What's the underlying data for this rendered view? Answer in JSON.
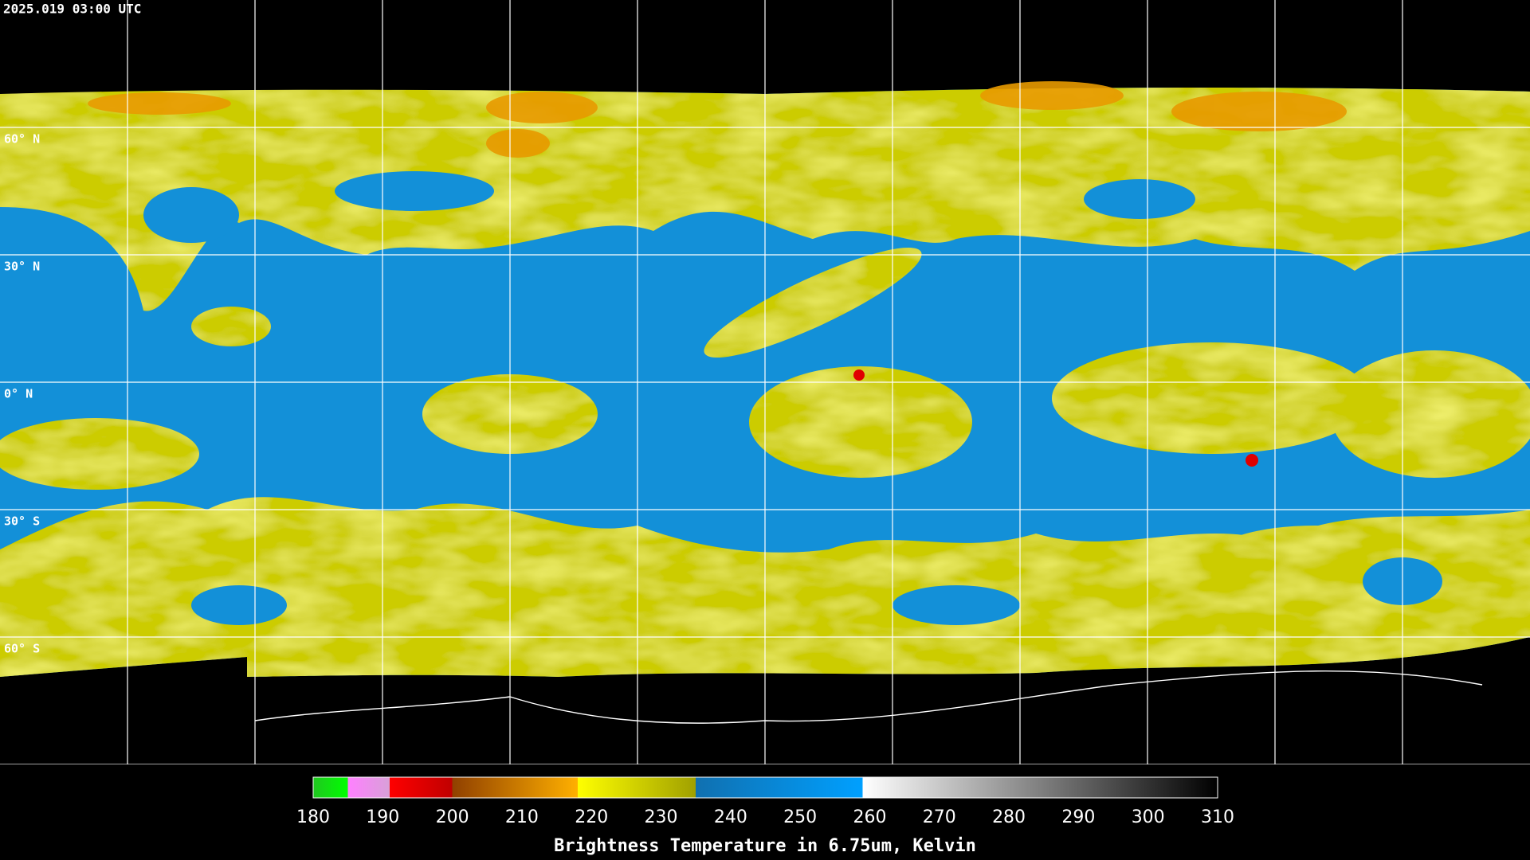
{
  "header": {
    "title": "2025.019 03:00 UTC"
  },
  "map": {
    "latitudes": [
      {
        "value": 60,
        "label": "60° N"
      },
      {
        "value": 30,
        "label": "30° N"
      },
      {
        "value": 0,
        "label": "0° N"
      },
      {
        "value": -30,
        "label": "30° S"
      },
      {
        "value": -60,
        "label": "60° S"
      }
    ]
  },
  "colorbar": {
    "range": [
      180,
      310
    ],
    "ticks": [
      180,
      190,
      200,
      210,
      220,
      230,
      240,
      250,
      260,
      270,
      280,
      290,
      300,
      310
    ],
    "color_stops": [
      {
        "value": 180,
        "color": "#20c820"
      },
      {
        "value": 185,
        "color": "#00ff00"
      },
      {
        "value": 185,
        "color": "#ff80ff"
      },
      {
        "value": 191,
        "color": "#d8a0d8"
      },
      {
        "value": 191,
        "color": "#ff0000"
      },
      {
        "value": 200,
        "color": "#c00000"
      },
      {
        "value": 200,
        "color": "#904000"
      },
      {
        "value": 218,
        "color": "#ffb000"
      },
      {
        "value": 218,
        "color": "#ffff00"
      },
      {
        "value": 235,
        "color": "#a0a000"
      },
      {
        "value": 235,
        "color": "#1070b0"
      },
      {
        "value": 259,
        "color": "#00a0ff"
      },
      {
        "value": 259,
        "color": "#ffffff"
      },
      {
        "value": 310,
        "color": "#000000"
      }
    ],
    "label": "Brightness Temperature in 6.75um, Kelvin"
  }
}
